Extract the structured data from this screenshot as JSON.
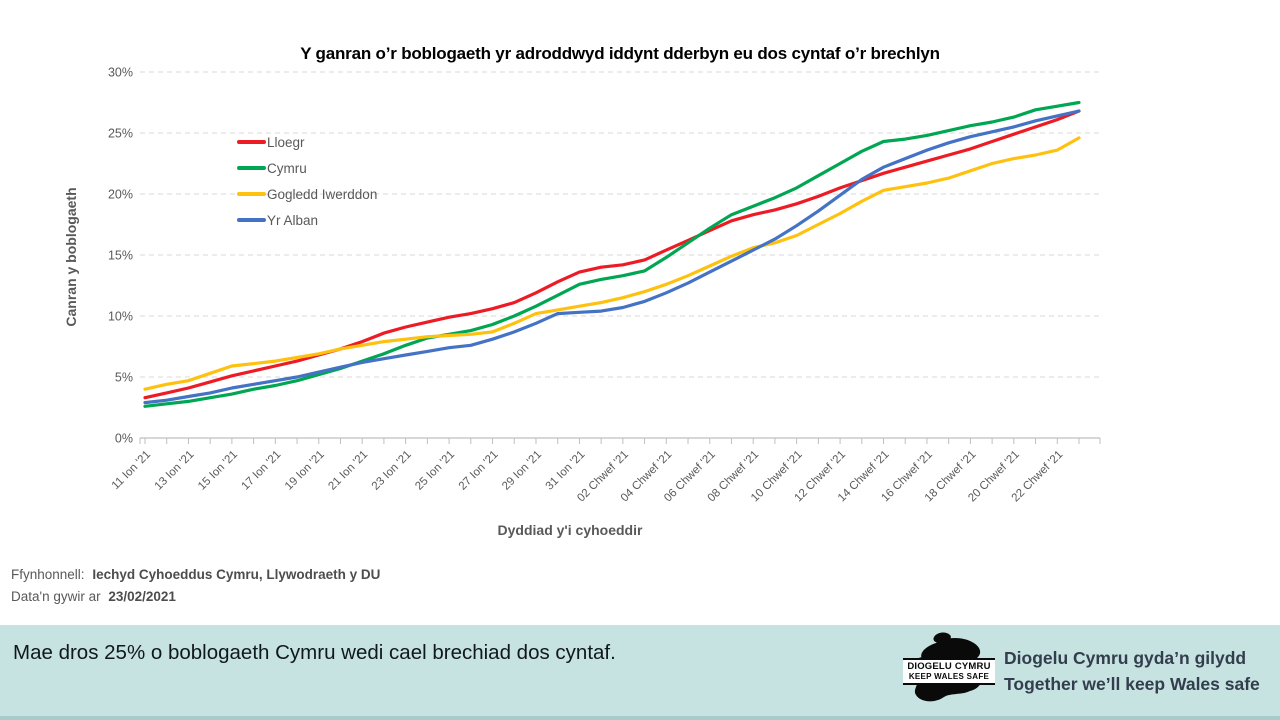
{
  "chart_data": {
    "type": "line",
    "title": "Y ganran o’r boblogaeth yr adroddwyd iddynt dderbyn eu dos cyntaf o’r brechlyn",
    "xlabel": "Dyddiad y'i cyhoeddir",
    "ylabel": "Canran y boblogaeth",
    "ylim": [
      0,
      30
    ],
    "ytick_step": 5,
    "ytick_labels": [
      "0%",
      "5%",
      "10%",
      "15%",
      "20%",
      "25%",
      "30%"
    ],
    "grid": "horizontal dashed",
    "legend_position": "inside upper-left",
    "x_label_every": 2,
    "x": [
      "11 Ion '21",
      "12 Ion '21",
      "13 Ion '21",
      "14 Ion '21",
      "15 Ion '21",
      "16 Ion '21",
      "17 Ion '21",
      "18 Ion '21",
      "19 Ion '21",
      "20 Ion '21",
      "21 Ion '21",
      "22 Ion '21",
      "23 Ion '21",
      "24 Ion '21",
      "25 Ion '21",
      "26 Ion '21",
      "27 Ion '21",
      "28 Ion '21",
      "29 Ion '21",
      "30 Ion '21",
      "31 Ion '21",
      "01 Chwef '21",
      "02 Chwef '21",
      "03 Chwef '21",
      "04 Chwef '21",
      "05 Chwef '21",
      "06 Chwef '21",
      "07 Chwef '21",
      "08 Chwef '21",
      "09 Chwef '21",
      "10 Chwef '21",
      "11 Chwef '21",
      "12 Chwef '21",
      "13 Chwef '21",
      "14 Chwef '21",
      "15 Chwef '21",
      "16 Chwef '21",
      "17 Chwef '21",
      "18 Chwef '21",
      "19 Chwef '21",
      "20 Chwef '21",
      "21 Chwef '21",
      "22 Chwef '21",
      "23 Chwef '21"
    ],
    "series": [
      {
        "name": "Lloegr",
        "color": "#ed1c24",
        "values": [
          3.3,
          3.7,
          4.1,
          4.6,
          5.1,
          5.5,
          5.9,
          6.3,
          6.8,
          7.3,
          7.9,
          8.6,
          9.1,
          9.5,
          9.9,
          10.2,
          10.6,
          11.1,
          11.9,
          12.8,
          13.6,
          14.0,
          14.2,
          14.6,
          15.4,
          16.2,
          17.0,
          17.8,
          18.3,
          18.7,
          19.2,
          19.8,
          20.5,
          21.1,
          21.7,
          22.2,
          22.7,
          23.2,
          23.7,
          24.3,
          24.9,
          25.5,
          26.1,
          26.8
        ]
      },
      {
        "name": "Cymru",
        "color": "#00a651",
        "values": [
          2.6,
          2.8,
          3.0,
          3.3,
          3.6,
          4.0,
          4.3,
          4.7,
          5.2,
          5.7,
          6.3,
          6.9,
          7.6,
          8.2,
          8.5,
          8.8,
          9.3,
          10.0,
          10.8,
          11.7,
          12.6,
          13.0,
          13.3,
          13.7,
          14.8,
          16.0,
          17.2,
          18.3,
          19.0,
          19.7,
          20.5,
          21.5,
          22.5,
          23.5,
          24.3,
          24.5,
          24.8,
          25.2,
          25.6,
          25.9,
          26.3,
          26.9,
          27.2,
          27.5
        ]
      },
      {
        "name": "Gogledd Iwerddon",
        "color": "#ffc110",
        "values": [
          4.0,
          4.4,
          4.7,
          5.3,
          5.9,
          6.1,
          6.3,
          6.6,
          6.9,
          7.3,
          7.6,
          7.9,
          8.1,
          8.3,
          8.4,
          8.5,
          8.7,
          9.4,
          10.2,
          10.5,
          10.8,
          11.1,
          11.5,
          12.0,
          12.6,
          13.3,
          14.1,
          14.9,
          15.6,
          16.0,
          16.6,
          17.5,
          18.4,
          19.4,
          20.3,
          20.6,
          20.9,
          21.3,
          21.9,
          22.5,
          22.9,
          23.2,
          23.6,
          24.6
        ]
      },
      {
        "name": "Yr Alban",
        "color": "#4472c4",
        "values": [
          2.9,
          3.1,
          3.4,
          3.7,
          4.1,
          4.4,
          4.7,
          5.0,
          5.4,
          5.8,
          6.2,
          6.5,
          6.8,
          7.1,
          7.4,
          7.6,
          8.1,
          8.7,
          9.4,
          10.2,
          10.3,
          10.4,
          10.7,
          11.2,
          11.9,
          12.7,
          13.6,
          14.5,
          15.4,
          16.3,
          17.4,
          18.6,
          19.9,
          21.2,
          22.2,
          22.9,
          23.6,
          24.2,
          24.7,
          25.1,
          25.5,
          26.0,
          26.4,
          26.8
        ]
      }
    ]
  },
  "footer": {
    "source_label": "Ffynhonnell:",
    "source_value": "Iechyd Cyhoeddus Cymru, Llywodraeth y DU",
    "updated_label": "Data'n gywir ar",
    "updated_value": "23/02/2021"
  },
  "banner": {
    "message": "Mae dros 25% o boblogaeth Cymru wedi cael brechiad dos cyntaf.",
    "background": "#c6e2e1",
    "logo_line1": "DIOGELU CYMRU",
    "logo_line2": "KEEP WALES SAFE",
    "tagline_welsh": "Diogelu Cymru gyda’n gilydd",
    "tagline_english": "Together we’ll keep Wales safe"
  }
}
